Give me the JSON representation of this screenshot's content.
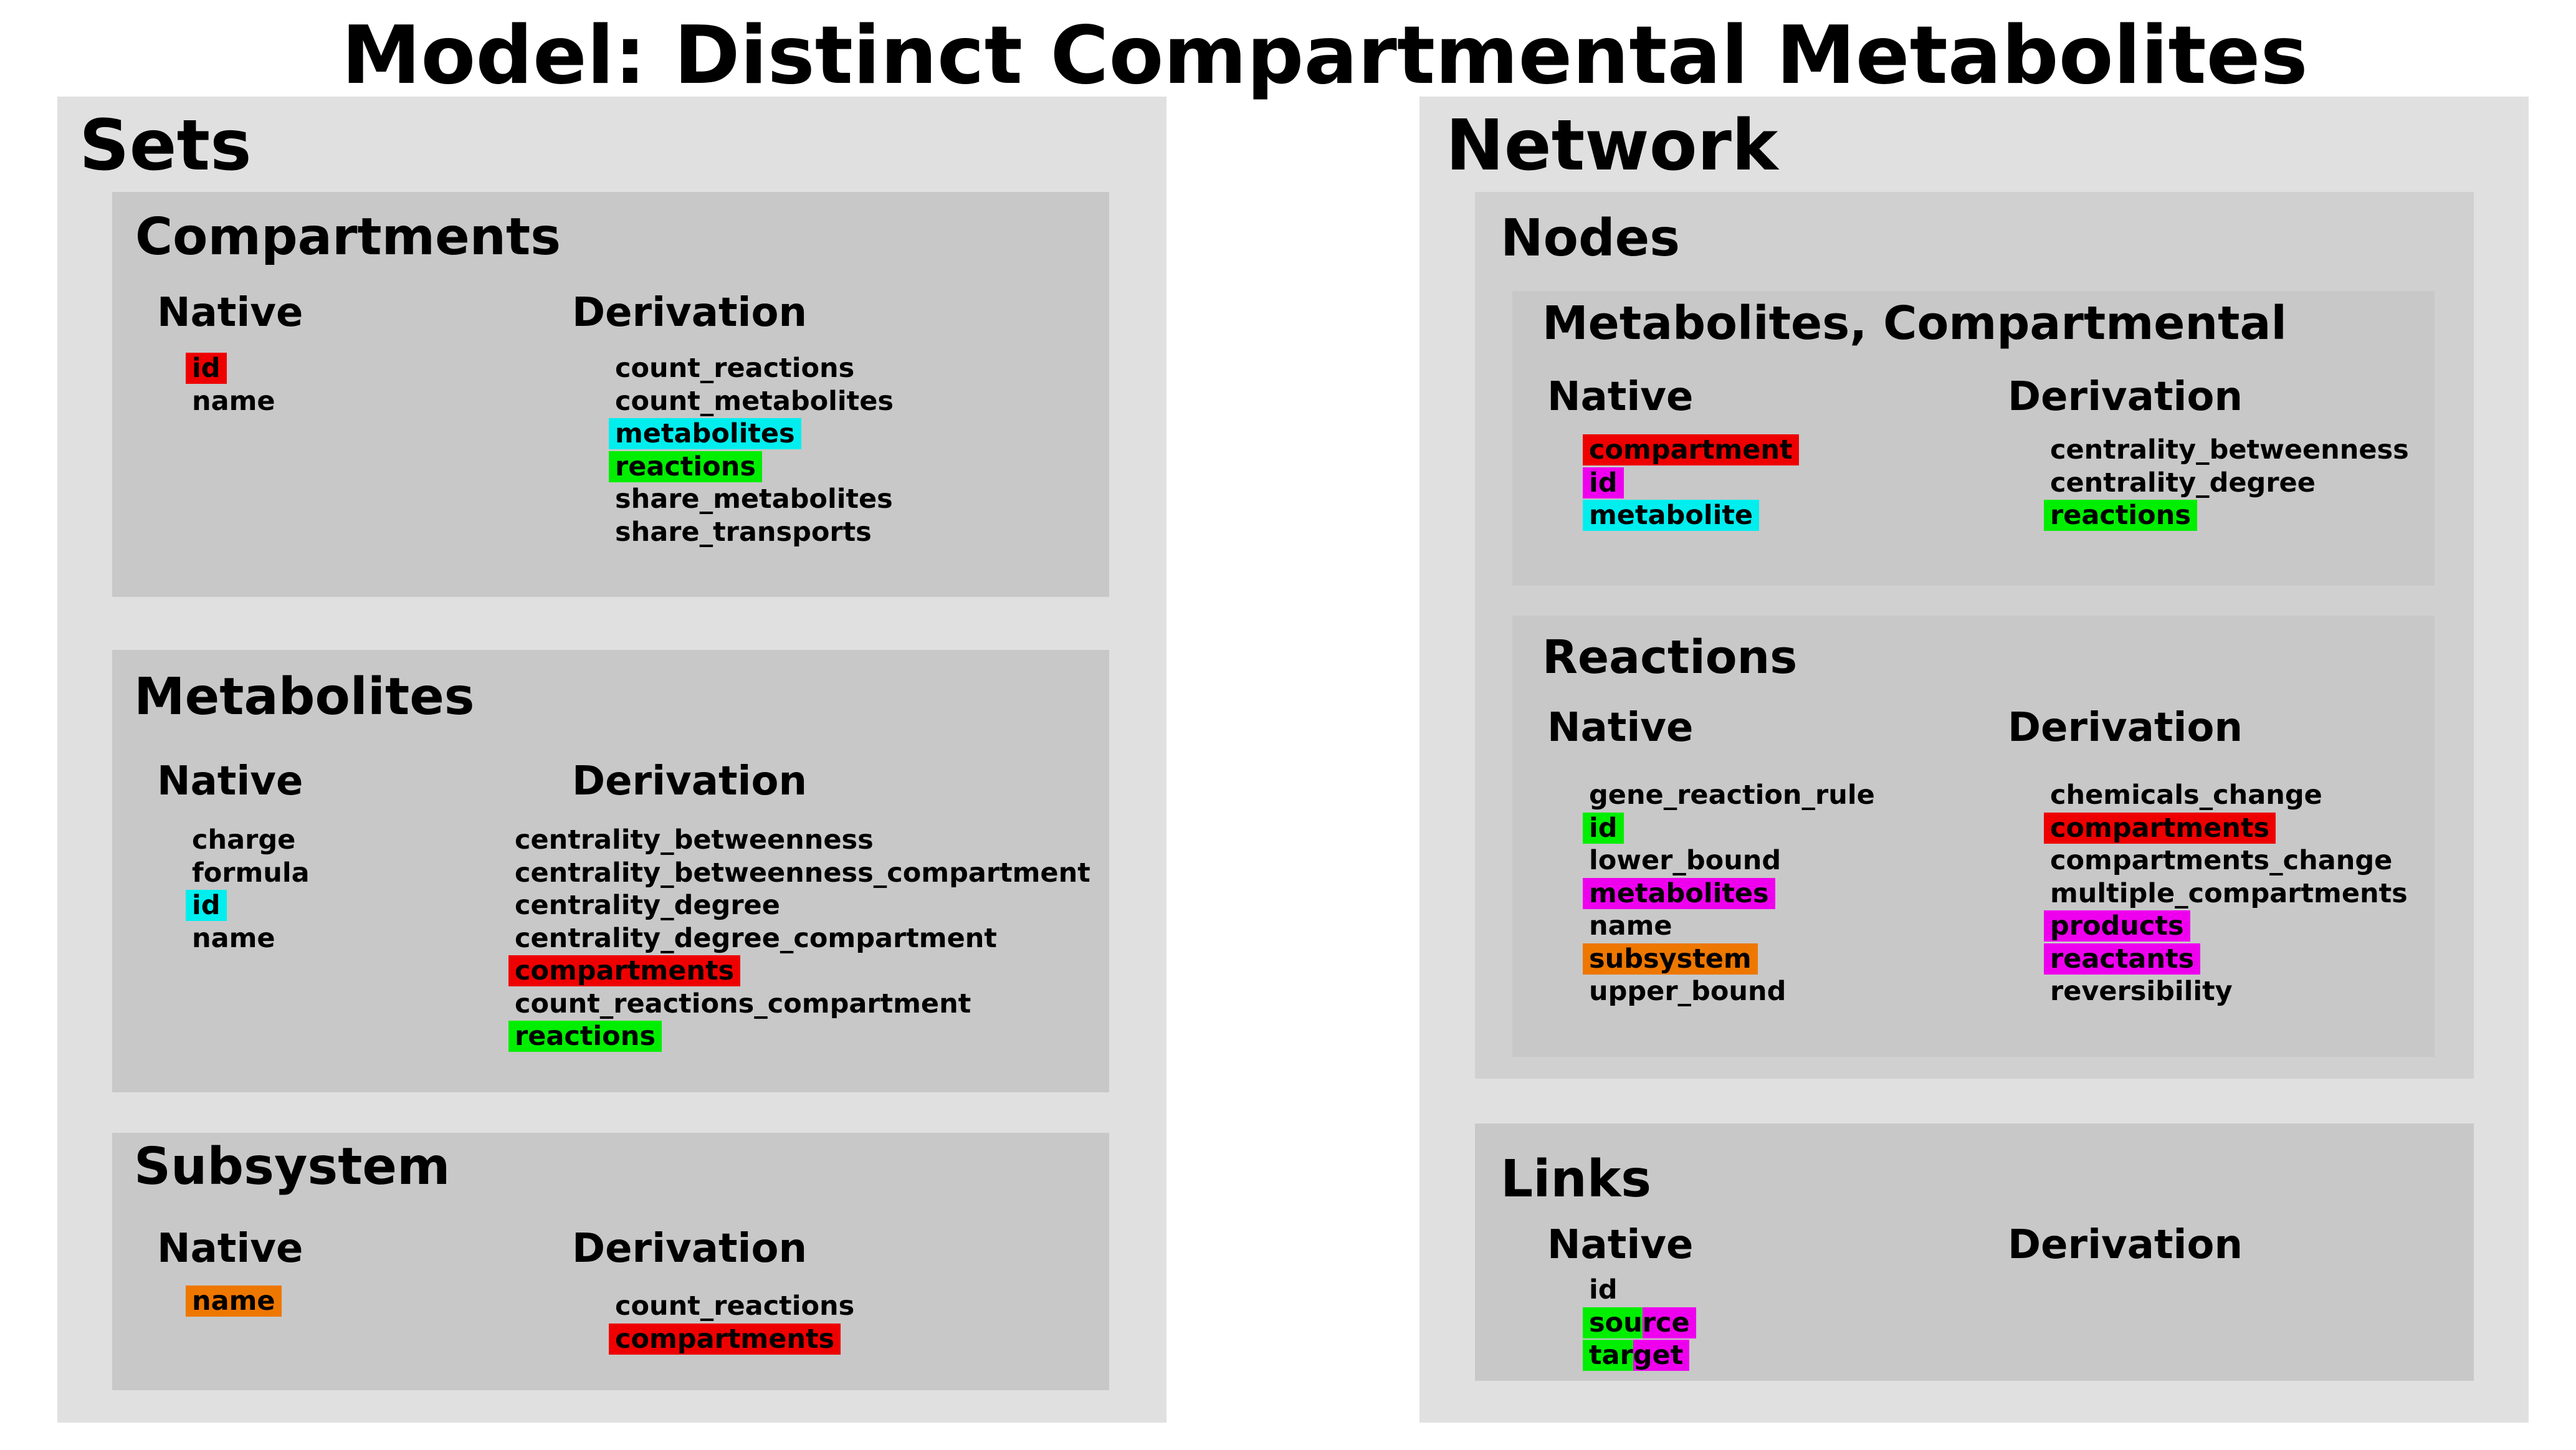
{
  "title": "Model: Distinct Compartmental Metabolites",
  "colors": {
    "red": "#ee0000",
    "cyan": "#00eeee",
    "green": "#00ee00",
    "magenta": "#ee00ee",
    "orange": "#ee7700",
    "panel": "#e0e0e0",
    "box": "#c8c8c8"
  },
  "sets": {
    "heading": "Sets",
    "compartments": {
      "heading": "Compartments",
      "native_label": "Native",
      "derivation_label": "Derivation",
      "native": [
        {
          "text": "id",
          "hl": "red"
        },
        {
          "text": "name",
          "hl": ""
        }
      ],
      "derivation": [
        {
          "text": "count_reactions",
          "hl": ""
        },
        {
          "text": "count_metabolites",
          "hl": ""
        },
        {
          "text": "metabolites",
          "hl": "cyan"
        },
        {
          "text": "reactions",
          "hl": "green"
        },
        {
          "text": "share_metabolites",
          "hl": ""
        },
        {
          "text": "share_transports",
          "hl": ""
        }
      ]
    },
    "metabolites": {
      "heading": "Metabolites",
      "native_label": "Native",
      "derivation_label": "Derivation",
      "native": [
        {
          "text": "charge",
          "hl": ""
        },
        {
          "text": "formula",
          "hl": ""
        },
        {
          "text": "id",
          "hl": "cyan"
        },
        {
          "text": "name",
          "hl": ""
        }
      ],
      "derivation": [
        {
          "text": "centrality_betweenness",
          "hl": ""
        },
        {
          "text": "centrality_betweenness_compartment",
          "hl": ""
        },
        {
          "text": "centrality_degree",
          "hl": ""
        },
        {
          "text": "centrality_degree_compartment",
          "hl": ""
        },
        {
          "text": "compartments",
          "hl": "red"
        },
        {
          "text": "count_reactions_compartment",
          "hl": ""
        },
        {
          "text": "reactions",
          "hl": "green"
        }
      ]
    },
    "subsystem": {
      "heading": "Subsystem",
      "native_label": "Native",
      "derivation_label": "Derivation",
      "native": [
        {
          "text": "name",
          "hl": "orange"
        }
      ],
      "derivation": [
        {
          "text": "count_reactions",
          "hl": ""
        },
        {
          "text": "compartments",
          "hl": "red"
        }
      ]
    }
  },
  "network": {
    "heading": "Network",
    "nodes": {
      "heading": "Nodes",
      "metabolites_compartmental": {
        "heading": "Metabolites, Compartmental",
        "native_label": "Native",
        "derivation_label": "Derivation",
        "native": [
          {
            "text": "compartment",
            "hl": "red"
          },
          {
            "text": "id",
            "hl": "magenta"
          },
          {
            "text": "metabolite",
            "hl": "cyan"
          }
        ],
        "derivation": [
          {
            "text": "centrality_betweenness",
            "hl": ""
          },
          {
            "text": "centrality_degree",
            "hl": ""
          },
          {
            "text": "reactions",
            "hl": "green"
          }
        ]
      },
      "reactions": {
        "heading": "Reactions",
        "native_label": "Native",
        "derivation_label": "Derivation",
        "native": [
          {
            "text": "gene_reaction_rule",
            "hl": ""
          },
          {
            "text": "id",
            "hl": "green"
          },
          {
            "text": "lower_bound",
            "hl": ""
          },
          {
            "text": "metabolites",
            "hl": "magenta"
          },
          {
            "text": "name",
            "hl": ""
          },
          {
            "text": "subsystem",
            "hl": "orange"
          },
          {
            "text": "upper_bound",
            "hl": ""
          }
        ],
        "derivation": [
          {
            "text": "chemicals_change",
            "hl": ""
          },
          {
            "text": "compartments",
            "hl": "red"
          },
          {
            "text": "compartments_change",
            "hl": ""
          },
          {
            "text": "multiple_compartments",
            "hl": ""
          },
          {
            "text": "products",
            "hl": "magenta"
          },
          {
            "text": "reactants",
            "hl": "magenta"
          },
          {
            "text": "reversibility",
            "hl": ""
          }
        ]
      }
    },
    "links": {
      "heading": "Links",
      "native_label": "Native",
      "derivation_label": "Derivation",
      "native": [
        {
          "text": "id",
          "hl": ""
        },
        {
          "text": "source",
          "hl": "green-magenta",
          "split": [
            "sou",
            "rce"
          ]
        },
        {
          "text": "target",
          "hl": "green-magenta",
          "split": [
            "tar",
            "get"
          ]
        }
      ],
      "derivation": []
    }
  }
}
